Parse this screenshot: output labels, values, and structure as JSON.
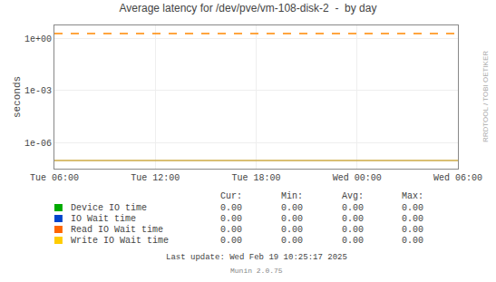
{
  "chart_data": {
    "type": "line",
    "title": "Average latency for /dev/pve/vm-108-disk-2  -  by day",
    "y_label": "seconds",
    "categories": [
      "Tue 06:00",
      "Tue 12:00",
      "Tue 18:00",
      "Wed 00:00",
      "Wed 06:00"
    ],
    "series": [
      {
        "name": "Device IO time",
        "color": "#00aa00",
        "values": [
          null,
          null,
          null,
          null,
          null
        ],
        "stats": [
          0,
          0,
          0,
          0
        ],
        "stats_labels": [
          "0.00",
          "0.00",
          "0.00",
          "0.00"
        ]
      },
      {
        "name": "IO Wait time",
        "color": "#0044cc",
        "values": [
          null,
          null,
          null,
          null,
          null
        ],
        "stats": [
          0,
          0,
          0,
          0
        ],
        "stats_labels": [
          "0.00",
          "0.00",
          "0.00",
          "0.00"
        ]
      },
      {
        "name": "Read IO Wait time",
        "color": "#ff6600",
        "values": [
          null,
          null,
          null,
          null,
          null
        ],
        "stats": [
          0,
          0,
          0,
          0
        ],
        "stats_labels": [
          "0.00",
          "0.00",
          "0.00",
          "0.00"
        ]
      },
      {
        "name": "Write IO Wait time",
        "color": "#ffcc00",
        "values": [
          null,
          null,
          null,
          null,
          null
        ],
        "stats": [
          0,
          0,
          0,
          0
        ],
        "stats_labels": [
          "0.00",
          "0.00",
          "0.00",
          "0.00"
        ]
      },
      {
        "color": "#ff8800",
        "line_style": "dashed",
        "values": [
          2.0,
          2.0,
          2.0,
          2.0,
          2.0
        ]
      },
      {
        "color": "#ccaa44",
        "line_style": "solid",
        "values": [
          9e-08,
          9e-08,
          9e-08,
          9e-08,
          9e-08
        ]
      }
    ],
    "table_headers": [
      "Cur:",
      "Min:",
      "Avg:",
      "Max:"
    ],
    "ylim": [
      3e-08,
      6.0
    ],
    "yticks": [
      {
        "value": 1e-06,
        "label": "1e-06"
      },
      {
        "value": 0.001,
        "label": "1e-03"
      },
      {
        "value": 1.0,
        "label": "1e+00"
      }
    ],
    "log": "y",
    "grid": true,
    "annotations": [
      "RRDTOOL / TOBI OETIKER",
      "Last update: Wed Feb 19 10:25:17 2025",
      "Munin 2.0.75"
    ]
  }
}
